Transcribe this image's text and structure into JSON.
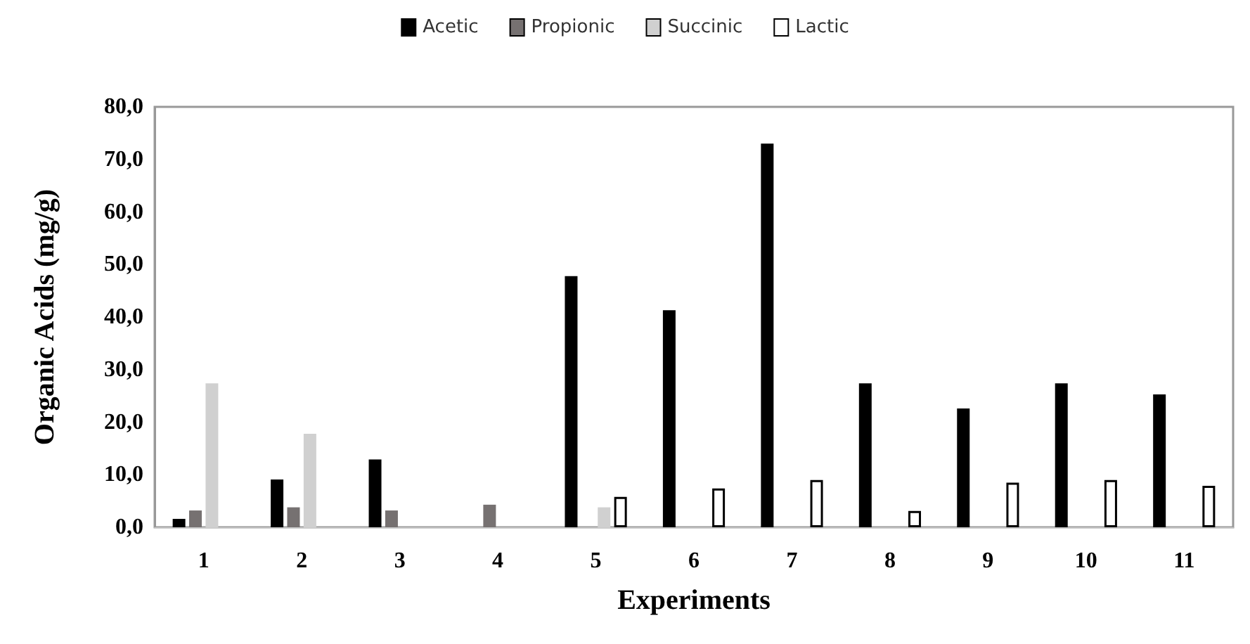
{
  "chart_data": {
    "type": "bar",
    "xlabel": "Experiments",
    "ylabel": "Organic Acids (mg/g)",
    "categories": [
      "1",
      "2",
      "3",
      "4",
      "5",
      "6",
      "7",
      "8",
      "9",
      "10",
      "11"
    ],
    "series": [
      {
        "name": "Acetic",
        "color": "#000000",
        "values": [
          1.6,
          9.1,
          12.9,
          null,
          47.8,
          41.3,
          73.0,
          27.4,
          22.6,
          27.4,
          25.3
        ]
      },
      {
        "name": "Propionic",
        "color": "#767171",
        "values": [
          3.2,
          3.8,
          3.2,
          4.3,
          null,
          null,
          null,
          null,
          null,
          null,
          null
        ]
      },
      {
        "name": "Succinic",
        "color": "#d0d0d0",
        "values": [
          27.4,
          17.8,
          null,
          null,
          3.8,
          null,
          null,
          null,
          null,
          null,
          null
        ]
      },
      {
        "name": "Lactic",
        "color": "#ffffff",
        "values": [
          null,
          null,
          null,
          null,
          5.8,
          7.4,
          9.0,
          3.1,
          8.5,
          9.0,
          7.9
        ]
      }
    ],
    "ylim": [
      0,
      80
    ],
    "yticks": [
      {
        "value": 0,
        "label": "0,0"
      },
      {
        "value": 10,
        "label": "10,0"
      },
      {
        "value": 20,
        "label": "20,0"
      },
      {
        "value": 30,
        "label": "30,0"
      },
      {
        "value": 40,
        "label": "40,0"
      },
      {
        "value": 50,
        "label": "50,0"
      },
      {
        "value": 60,
        "label": "60,0"
      },
      {
        "value": 70,
        "label": "70,0"
      },
      {
        "value": 80,
        "label": "80,0"
      }
    ],
    "grid": false,
    "legend": "top"
  }
}
